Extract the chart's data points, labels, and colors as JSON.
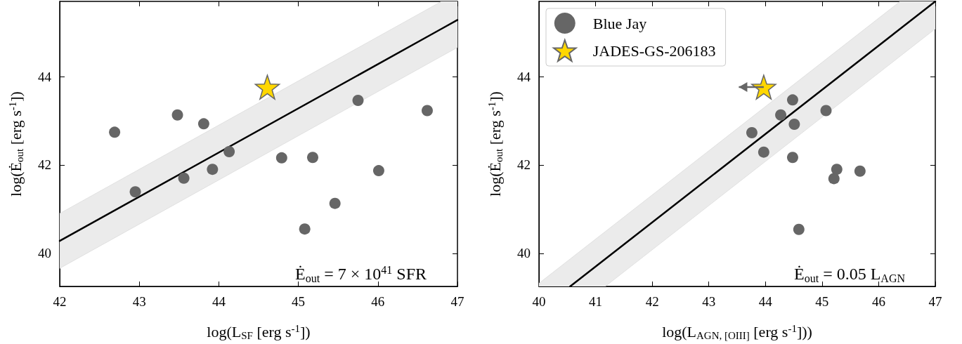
{
  "chart_data": [
    {
      "type": "scatter",
      "xlabel": "log(L$_{SF}$ [erg s$^{-1}$])",
      "ylabel": "log(Ė$_{out}$ [erg s$^{-1}$])",
      "xlim": [
        42,
        47
      ],
      "xticks": [
        42,
        43,
        44,
        45,
        46,
        47
      ],
      "ylim": [
        39.25,
        45.7
      ],
      "yticks": [
        40,
        42,
        44
      ],
      "grid": false,
      "legend": false,
      "annotations": [
        "Ė$_{out}$ = 7 × 10$^{41}$ SFR"
      ],
      "series": [
        {
          "type": "line",
          "color": "#000000",
          "x": [
            42,
            46.8,
            47
          ],
          "values": [
            40.28,
            45.08,
            45.28
          ],
          "lower": [
            39.66,
            44.46,
            44.66
          ],
          "upper": [
            40.9,
            45.7,
            45.7
          ],
          "marker": "none"
        },
        {
          "type": "scatter",
          "color": "#666666",
          "marker": "circle",
          "x": [
            42.69,
            42.95,
            43.48,
            43.56,
            43.81,
            43.92,
            44.13,
            44.79,
            45.18,
            45.46,
            45.08,
            45.75,
            46.01,
            46.62
          ],
          "values": [
            42.74,
            41.39,
            43.13,
            41.7,
            42.93,
            41.9,
            42.3,
            42.16,
            42.17,
            41.13,
            40.55,
            43.46,
            41.87,
            43.23
          ]
        },
        {
          "type": "scatter",
          "color": "#ffd700",
          "marker": "star",
          "x": [
            44.61
          ],
          "values": [
            43.76
          ]
        }
      ]
    },
    {
      "type": "scatter",
      "xlabel": "log(L$_{AGN, [OIII]}$ [erg s$^{-1}$]))",
      "ylabel": "log(Ė$_{out}$ [erg s$^{-1}$])",
      "xlim": [
        40,
        47
      ],
      "xticks": [
        40,
        41,
        42,
        43,
        44,
        45,
        46,
        47
      ],
      "ylim": [
        39.25,
        45.7
      ],
      "yticks": [
        40,
        42,
        44
      ],
      "grid": false,
      "legend": "top left",
      "annotations": [
        "Ė$_{out}$ = 0.05 L$_{AGN}$"
      ],
      "series": [
        {
          "type": "line",
          "color": "#000000",
          "x": [
            40,
            40.55,
            41.17,
            46.38,
            47
          ],
          "values": [
            null,
            39.25,
            39.87,
            45.08,
            45.7
          ],
          "lower": [
            39.25,
            39.25,
            39.25,
            44.46,
            45.08
          ],
          "upper": [
            39.32,
            39.87,
            40.49,
            45.7,
            45.7
          ],
          "marker": "none"
        },
        {
          "type": "scatter",
          "name": "Blue Jay",
          "color": "#666666",
          "marker": "circle",
          "x": [
            44.48,
            44.27,
            44.51,
            43.76,
            45.07,
            43.97,
            44.48,
            45.26,
            45.21,
            45.67,
            44.59
          ],
          "values": [
            43.47,
            43.13,
            42.92,
            42.73,
            43.23,
            42.29,
            42.17,
            41.9,
            41.69,
            41.86,
            40.54
          ]
        },
        {
          "type": "scatter",
          "name": "JADES-GS-206183",
          "color": "#ffd700",
          "marker": "star",
          "x": [
            43.97
          ],
          "values": [
            43.76
          ],
          "xerrors": [
            [
              43.53,
              43.97
            ]
          ]
        }
      ]
    }
  ]
}
